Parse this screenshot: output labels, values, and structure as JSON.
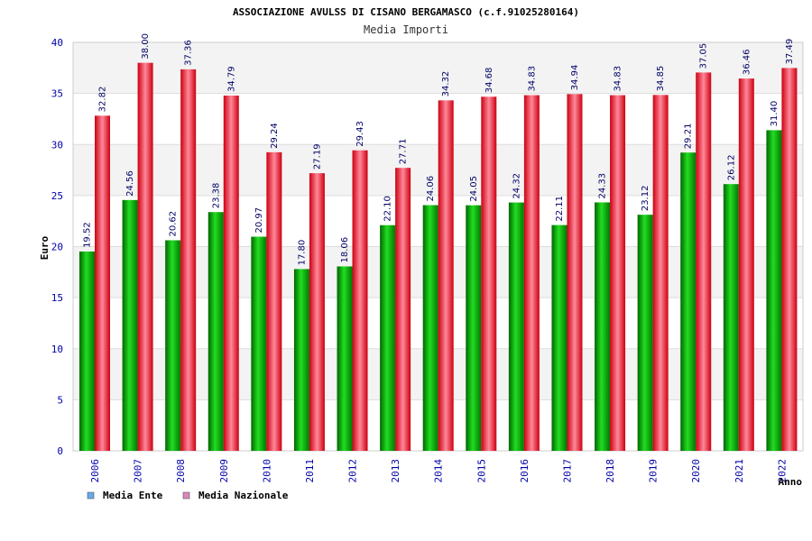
{
  "chart_data": {
    "type": "bar",
    "title": "ASSOCIAZIONE AVULSS DI CISANO BERGAMASCO (c.f.91025280164)",
    "subtitle": "Media Importi",
    "ylabel": "Euro",
    "xlabel": "Anno",
    "ylim": [
      0,
      40
    ],
    "yticks": [
      "0",
      "5",
      "10",
      "15",
      "20",
      "25",
      "30",
      "35",
      "40"
    ],
    "grid": true,
    "legend_position": "bottom-left",
    "categories": [
      "2006",
      "2007",
      "2008",
      "2009",
      "2010",
      "2011",
      "2012",
      "2013",
      "2014",
      "2015",
      "2016",
      "2017",
      "2018",
      "2019",
      "2020",
      "2021",
      "2022"
    ],
    "series": [
      {
        "name": "Media Ente",
        "color": "#00aa00",
        "legend_color": "#66aaee",
        "values": [
          19.52,
          24.56,
          20.62,
          23.38,
          20.97,
          17.8,
          18.06,
          22.1,
          24.06,
          24.05,
          24.32,
          22.11,
          24.33,
          23.12,
          29.21,
          26.12,
          31.4
        ],
        "labels": [
          "19.52",
          "24.56",
          "20.62",
          "23.38",
          "20.97",
          "17.80",
          "18.06",
          "22.10",
          "24.06",
          "24.05",
          "24.32",
          "22.11",
          "24.33",
          "23.12",
          "29.21",
          "26.12",
          "31.40"
        ]
      },
      {
        "name": "Media Nazionale",
        "color": "#ee2233",
        "legend_color": "#dd88bb",
        "values": [
          32.82,
          38.0,
          37.36,
          34.79,
          29.24,
          27.19,
          29.43,
          27.71,
          34.32,
          34.68,
          34.83,
          34.94,
          34.83,
          34.85,
          37.05,
          36.46,
          37.49
        ],
        "labels": [
          "32.82",
          "38.00",
          "37.36",
          "34.79",
          "29.24",
          "27.19",
          "29.43",
          "27.71",
          "34.32",
          "34.68",
          "34.83",
          "34.94",
          "34.83",
          "34.85",
          "37.05",
          "36.46",
          "37.49"
        ]
      }
    ]
  }
}
